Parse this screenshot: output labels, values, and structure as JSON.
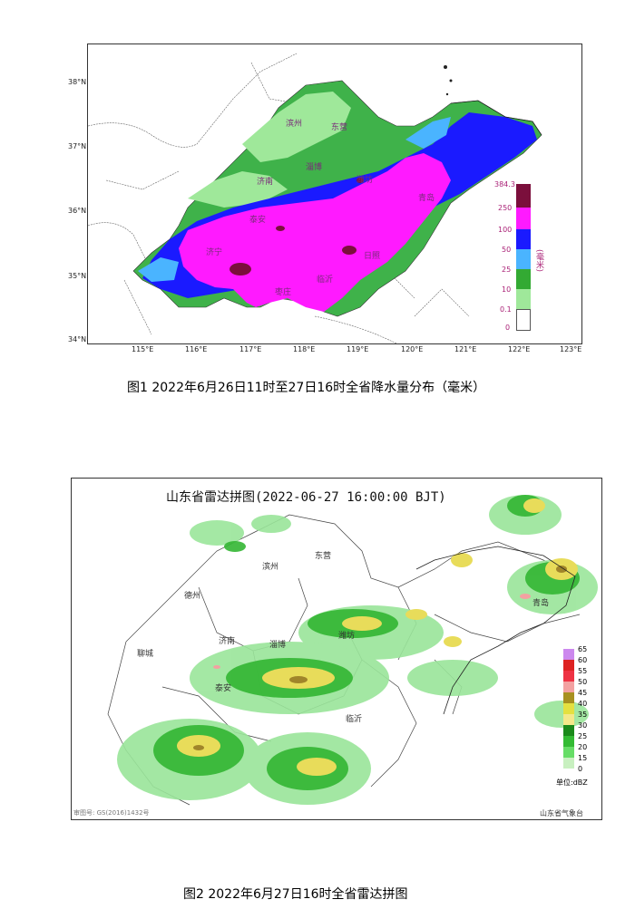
{
  "figure1": {
    "caption": "图1 2022年6月26日11时至27日16时全省降水量分布（毫米）",
    "lat_labels": [
      "38°N",
      "37°N",
      "36°N",
      "35°N",
      "34°N"
    ],
    "lon_labels": [
      "115°E",
      "116°E",
      "117°E",
      "118°E",
      "119°E",
      "120°E",
      "121°E",
      "122°E",
      "123°E"
    ],
    "cities": [
      "滨州",
      "东营",
      "济南",
      "淄博",
      "潍坊",
      "青岛",
      "泰安",
      "济宁",
      "日照",
      "临沂",
      "枣庄"
    ],
    "legend": {
      "max": "384.3",
      "levels": [
        "250",
        "100",
        "50",
        "25",
        "10",
        "0.1",
        "0"
      ],
      "unit": "(毫米)",
      "colors": [
        "#7b0f3c",
        "#ff1aff",
        "#1a1aff",
        "#4ab4ff",
        "#33aa33",
        "#9fe89a"
      ]
    }
  },
  "figure2": {
    "caption": "图2 2022年6月27日16时全省雷达拼图",
    "title": "山东省雷达拼图(2022-06-27 16:00:00 BJT)",
    "cities": [
      "东营",
      "滨州",
      "德州",
      "聊城",
      "济南",
      "淄博",
      "潍坊",
      "泰安",
      "青岛",
      "临沂"
    ],
    "legend": {
      "levels": [
        "65",
        "60",
        "55",
        "50",
        "45",
        "40",
        "35",
        "30",
        "25",
        "20",
        "15",
        "0"
      ],
      "unit": "单位:dBZ",
      "colors": [
        "#cc88ee",
        "#dd2222",
        "#ee3344",
        "#f3a1a1",
        "#a89020",
        "#e4e040",
        "#f4e88a",
        "#1a8a1a",
        "#33bb33",
        "#66dd66",
        "#c8f0c0"
      ]
    },
    "map_number": "审图号: GS(2016)1432号",
    "agency": "山东省气象台"
  }
}
